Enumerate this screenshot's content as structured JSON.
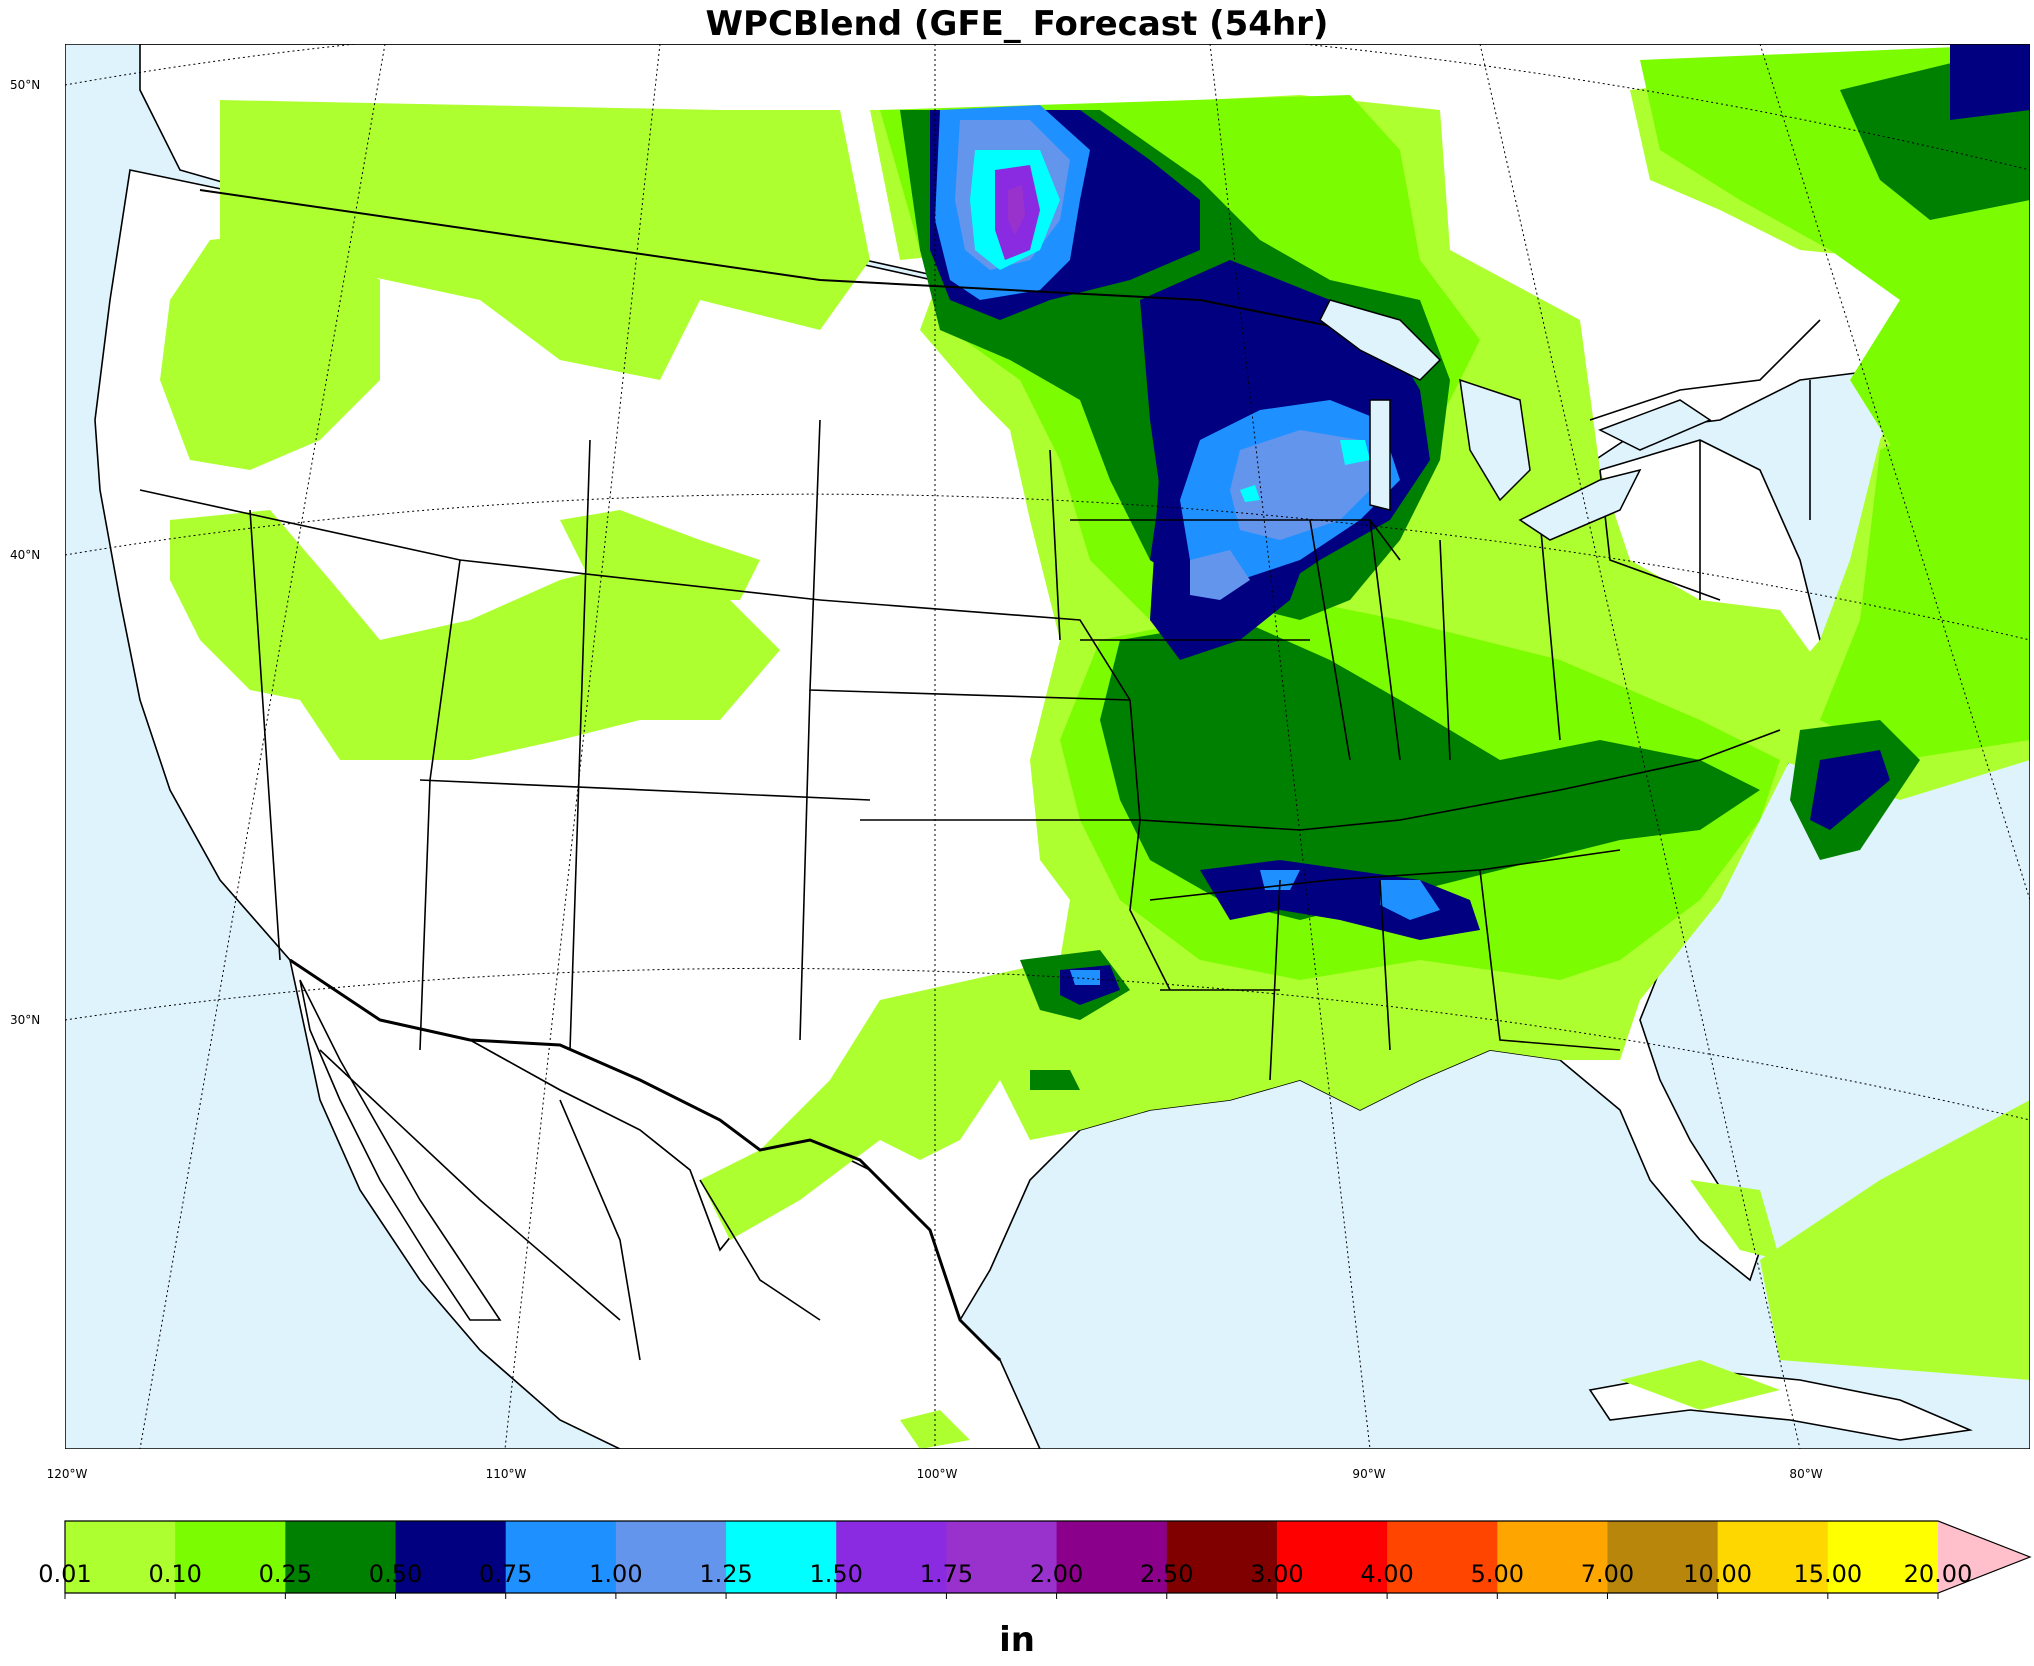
{
  "title": "WPCBlend (GFE_ Forecast (54hr)",
  "latitude_labels": [
    "50°N",
    "40°N",
    "30°N"
  ],
  "longitude_labels": [
    "120°W",
    "110°W",
    "100°W",
    "90°W",
    "80°W"
  ],
  "colorbar": {
    "units": "in",
    "levels": [
      "0.01",
      "0.10",
      "0.25",
      "0.50",
      "0.75",
      "1.00",
      "1.25",
      "1.50",
      "1.75",
      "2.00",
      "2.50",
      "3.00",
      "4.00",
      "5.00",
      "7.00",
      "10.00",
      "15.00",
      "20.00"
    ],
    "colors": [
      "#adff2f",
      "#7cfc00",
      "#008000",
      "#000080",
      "#1e90ff",
      "#6495ed",
      "#00ffff",
      "#8a2be2",
      "#9932cc",
      "#8b008b",
      "#800000",
      "#ff0000",
      "#ff4500",
      "#ffa500",
      "#b8860b",
      "#ffd700",
      "#ffff00"
    ],
    "extend_color": "#ffc0cb"
  },
  "colors": {
    "ocean": "#dff3fd",
    "land": "#ffffff",
    "borders": "#000000"
  }
}
